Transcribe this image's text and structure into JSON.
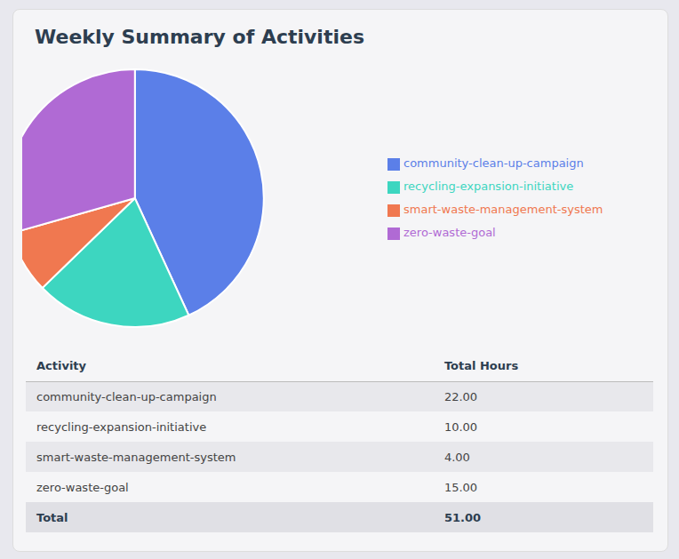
{
  "chart_data": [
    {
      "type": "pie",
      "title": "Weekly Summary of Activities",
      "categories": [
        "community-clean-up-campaign",
        "recycling-expansion-initiative",
        "smart-waste-management-system",
        "zero-waste-goal"
      ],
      "values": [
        22,
        10,
        4,
        15
      ],
      "colors": [
        "#5b7fe8",
        "#3dd6c0",
        "#f07850",
        "#b06ad4"
      ],
      "legend": "right"
    },
    {
      "type": "table",
      "columns": [
        "Activity",
        "Total Hours"
      ],
      "categories": [
        "community-clean-up-campaign",
        "recycling-expansion-initiative",
        "smart-waste-management-system",
        "zero-waste-goal",
        "Total"
      ],
      "values": [
        22,
        10,
        4,
        15,
        51
      ],
      "value_labels": [
        "22.00",
        "10.00",
        "4.00",
        "15.00",
        "51.00"
      ]
    }
  ]
}
